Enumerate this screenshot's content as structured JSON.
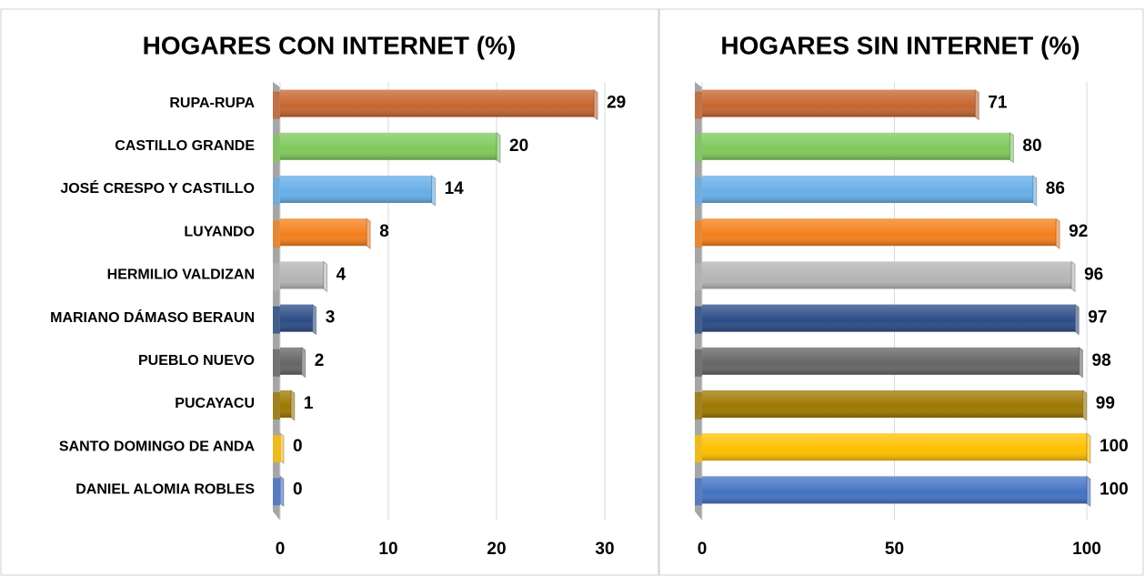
{
  "chart_data": [
    {
      "type": "barh",
      "title": "HOGARES CON INTERNET (%)",
      "categories": [
        "RUPA-RUPA",
        "CASTILLO GRANDE",
        "JOSÉ CRESPO Y CASTILLO",
        "LUYANDO",
        "HERMILIO VALDIZAN",
        "MARIANO DÁMASO BERAUN",
        "PUEBLO NUEVO",
        "PUCAYACU",
        "SANTO DOMINGO DE ANDA",
        "DANIEL ALOMIA ROBLES"
      ],
      "values": [
        29,
        20,
        14,
        8,
        4,
        3,
        2,
        1,
        0,
        0
      ],
      "colors": [
        "#c5652f",
        "#7fc95b",
        "#66aee8",
        "#f57f1c",
        "#b5b5b5",
        "#2c4c86",
        "#656565",
        "#9e7800",
        "#ffc000",
        "#4472c4"
      ],
      "xlim": [
        0,
        30
      ],
      "xticks": [
        0,
        10,
        20,
        30
      ],
      "grid": true
    },
    {
      "type": "barh",
      "title": "HOGARES SIN INTERNET (%)",
      "values": [
        71,
        80,
        86,
        92,
        96,
        97,
        98,
        99,
        100,
        100
      ],
      "colors": [
        "#c5652f",
        "#7fc95b",
        "#66aee8",
        "#f57f1c",
        "#b5b5b5",
        "#2c4c86",
        "#656565",
        "#9e7800",
        "#ffc000",
        "#4472c4"
      ],
      "xlim": [
        0,
        100
      ],
      "xticks": [
        0,
        50,
        100
      ],
      "grid": true
    }
  ]
}
